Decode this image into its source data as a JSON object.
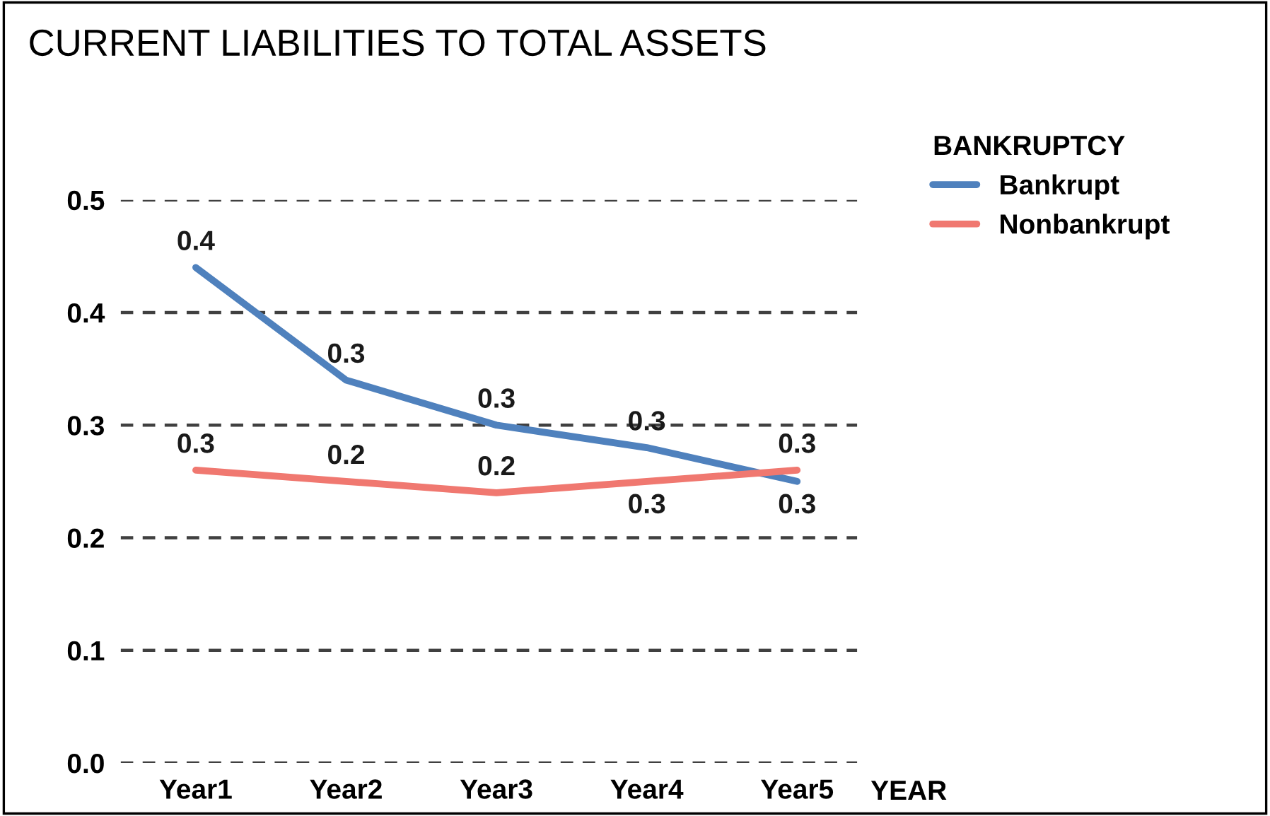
{
  "chart_data": {
    "type": "line",
    "title": "CURRENT LIABILITIES TO TOTAL ASSETS",
    "xlabel": "YEAR",
    "legend_title": "BANKRUPTCY",
    "categories": [
      "Year1",
      "Year2",
      "Year3",
      "Year4",
      "Year5"
    ],
    "series": [
      {
        "name": "Bankrupt",
        "color": "#4f81bd",
        "values": [
          0.44,
          0.34,
          0.3,
          0.28,
          0.25
        ],
        "value_labels": [
          "0.4",
          "0.3",
          "0.3",
          "0.3",
          "0.3"
        ]
      },
      {
        "name": "Nonbankrupt",
        "color": "#f07870",
        "values": [
          0.26,
          0.25,
          0.24,
          0.25,
          0.26
        ],
        "value_labels": [
          "0.3",
          "0.2",
          "0.2",
          "0.3",
          "0.3"
        ]
      }
    ],
    "ylim": [
      0,
      0.5
    ],
    "yticks": [
      {
        "value": 0,
        "label": "0.0"
      },
      0.1,
      0.2,
      0.3,
      0.4,
      0.5
    ],
    "grid": "y",
    "legend": "top right",
    "marker": "none",
    "line_style": "solid"
  }
}
